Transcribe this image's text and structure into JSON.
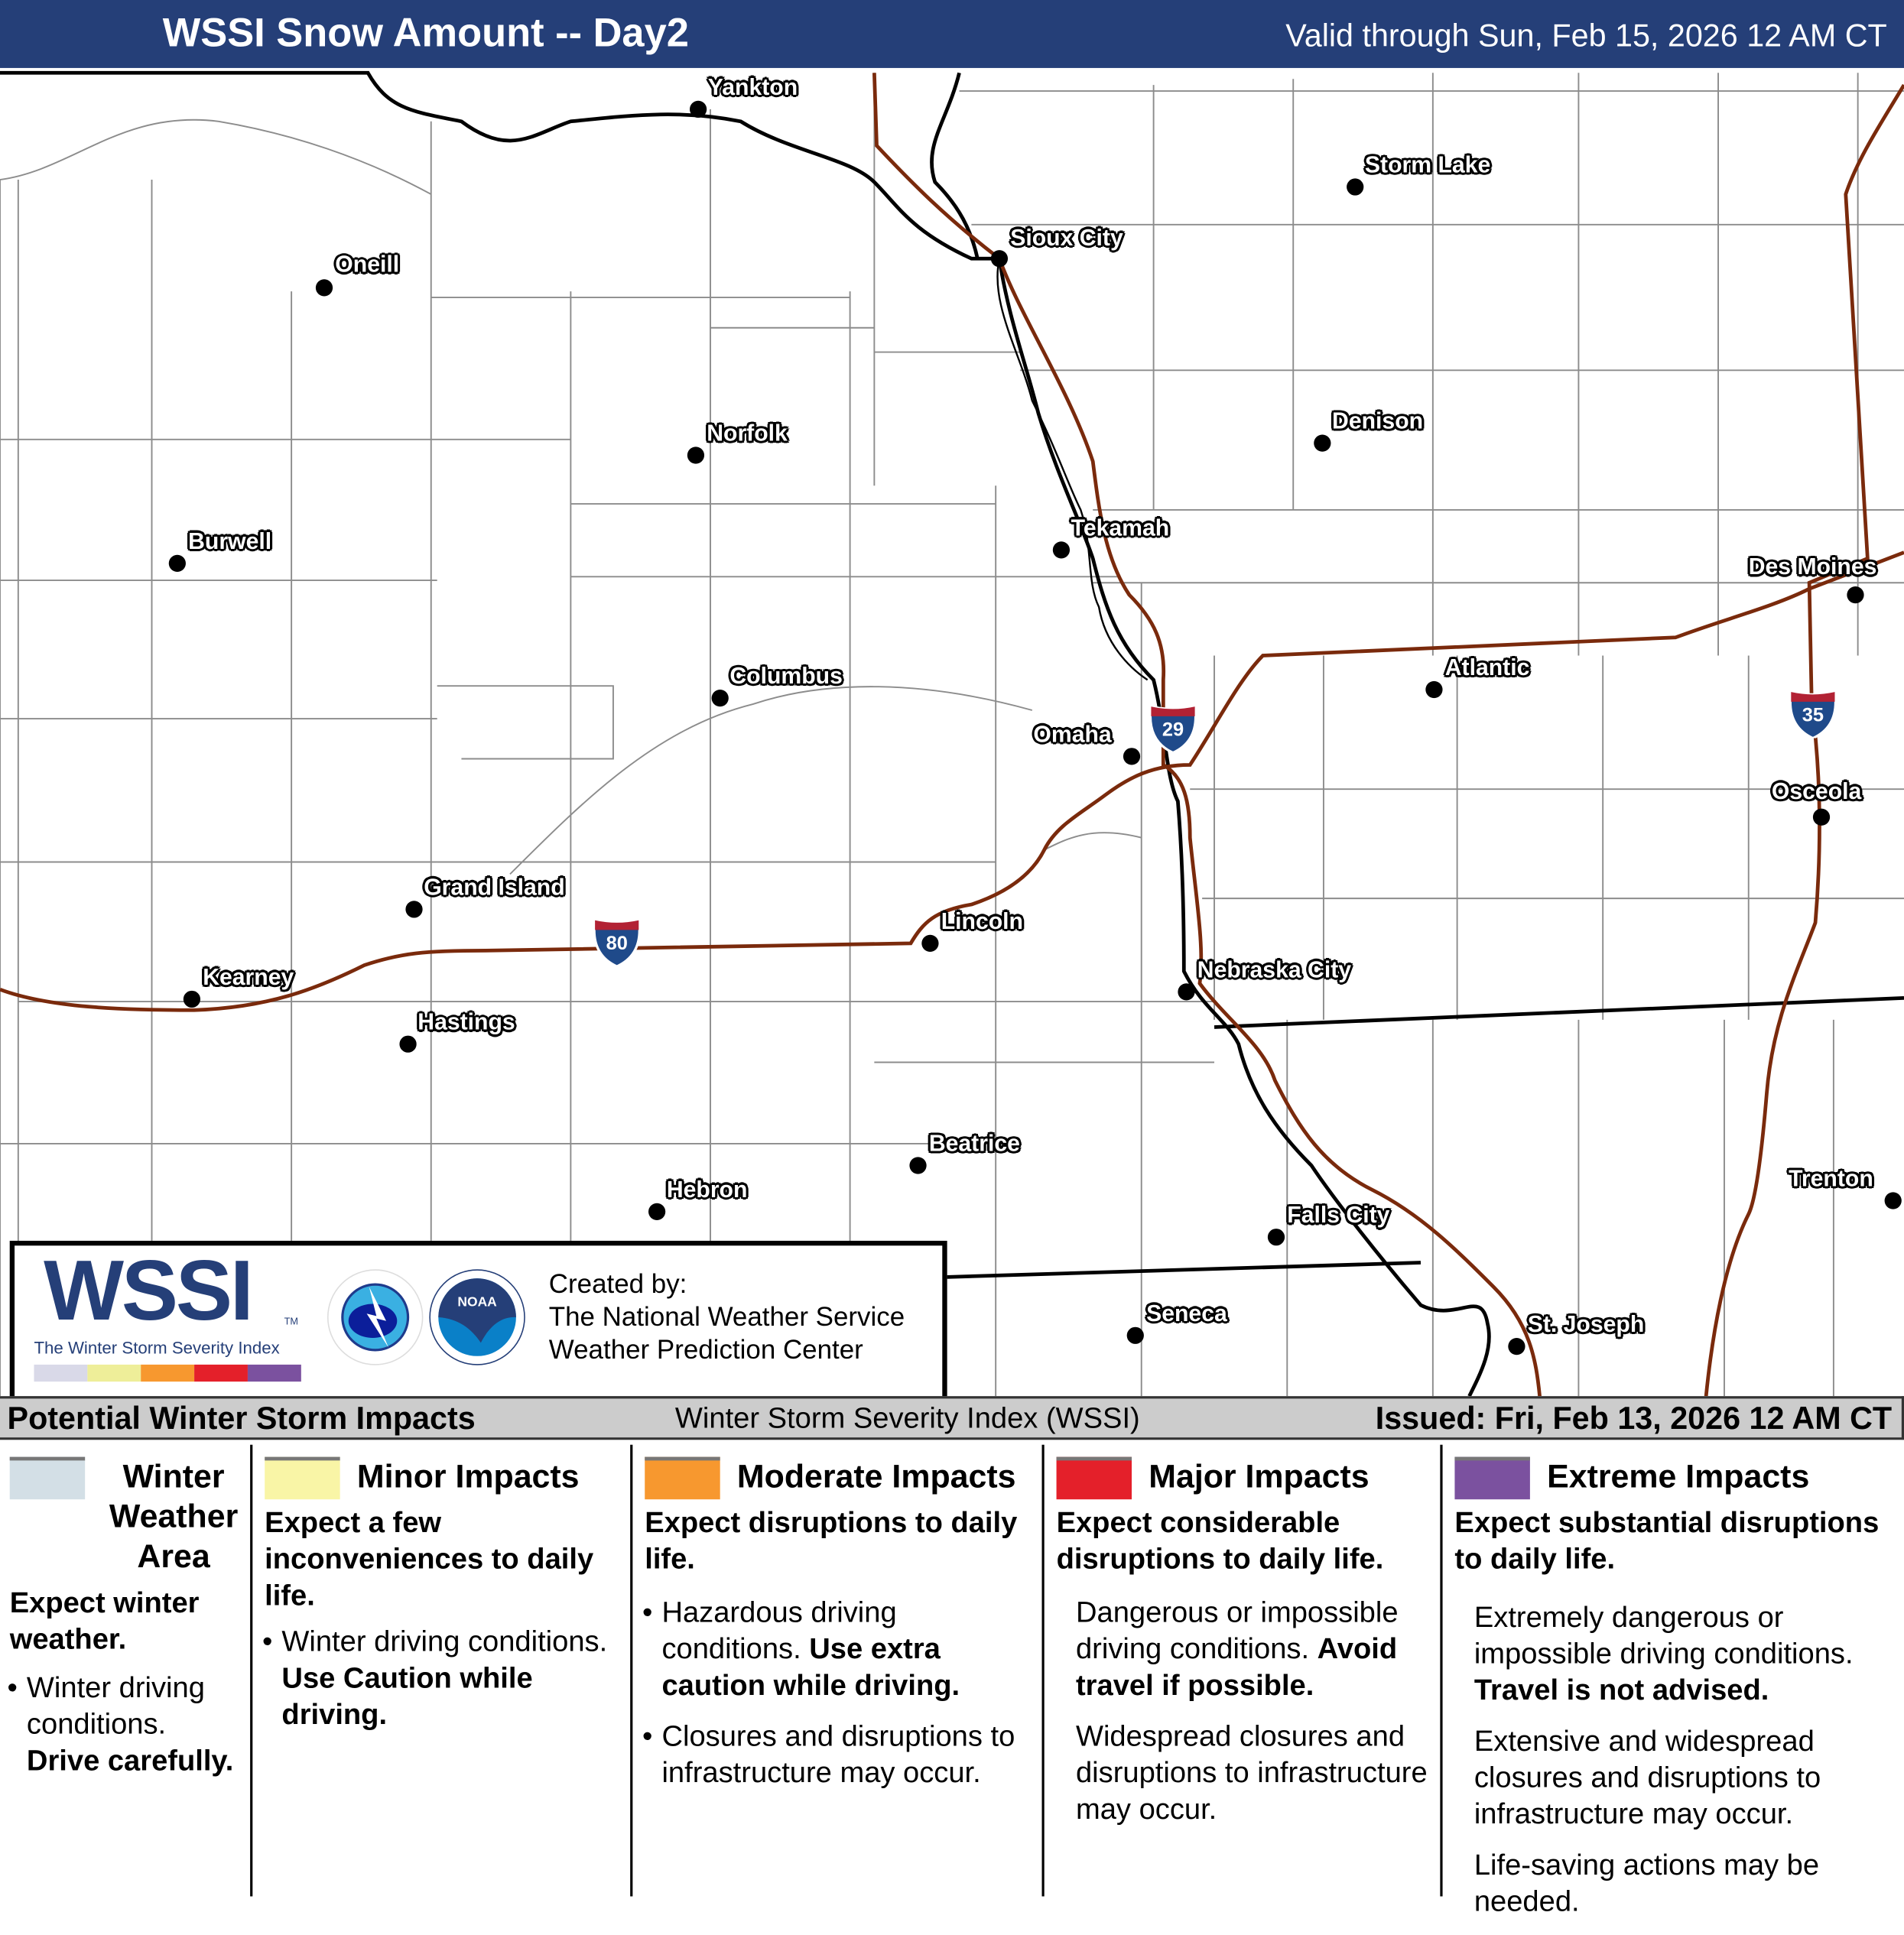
{
  "header": {
    "title": "WSSI Snow Amount -- Day2",
    "valid": "Valid through Sun, Feb 15, 2026 12 AM CT"
  },
  "map": {
    "cities": [
      {
        "name": "Yankton"
      },
      {
        "name": "Storm Lake"
      },
      {
        "name": "Sioux City"
      },
      {
        "name": "Oneill"
      },
      {
        "name": "Norfolk"
      },
      {
        "name": "Denison"
      },
      {
        "name": "Burwell"
      },
      {
        "name": "Tekamah"
      },
      {
        "name": "Des Moines"
      },
      {
        "name": "Columbus"
      },
      {
        "name": "Atlantic"
      },
      {
        "name": "Omaha"
      },
      {
        "name": "Osceola"
      },
      {
        "name": "Grand Island"
      },
      {
        "name": "Lincoln"
      },
      {
        "name": "Kearney"
      },
      {
        "name": "Nebraska City"
      },
      {
        "name": "Hastings"
      },
      {
        "name": "Beatrice"
      },
      {
        "name": "Hebron"
      },
      {
        "name": "Trenton"
      },
      {
        "name": "Falls City"
      },
      {
        "name": "Seneca"
      },
      {
        "name": "St. Joseph"
      }
    ],
    "interstates": [
      "29",
      "35",
      "80"
    ],
    "colors": {
      "interstate": "#7a2a0c",
      "state_line": "#000000",
      "county_line": "#8c8c8c",
      "shield_blue": "#1f4a8a",
      "shield_red": "#b22234"
    }
  },
  "logo": {
    "wssi": "WSSI",
    "tm": "TM",
    "subtitle": "The Winter Storm Severity Index",
    "created_by": "Created by:",
    "org1": "The National Weather Service",
    "org2": "Weather Prediction Center",
    "nws_ring": "NATIONAL WEATHER SERVICE",
    "noaa": "NOAA"
  },
  "band": {
    "left": "Potential Winter Storm Impacts",
    "center": "Winter Storm Severity Index (WSSI)",
    "issued": "Issued: Fri, Feb 13, 2026 12 AM CT"
  },
  "legend": [
    {
      "title": "Winter Weather Area",
      "color": "#d3dfe6",
      "desc": "Expect winter weather.",
      "bullets": [
        [
          "Winter driving conditions. ",
          "Drive carefully."
        ]
      ]
    },
    {
      "title": "Minor Impacts",
      "color": "#f9f5a6",
      "desc": "Expect a few inconveniences to daily life.",
      "bullets": [
        [
          "Winter driving conditions. ",
          "Use Caution while driving."
        ]
      ]
    },
    {
      "title": "Moderate Impacts",
      "color": "#f7982f",
      "desc": "Expect disruptions to daily life.",
      "bullets": [
        [
          "Hazardous driving conditions. ",
          "Use extra caution while driving."
        ],
        [
          "Closures and disruptions to infrastructure may occur.",
          ""
        ]
      ]
    },
    {
      "title": "Major Impacts",
      "color": "#e4202a",
      "desc": "Expect considerable disruptions to daily life.",
      "bullets": [
        [
          "Dangerous or impossible driving conditions. ",
          "Avoid travel if possible."
        ],
        [
          "Widespread closures and disruptions to infrastructure may occur.",
          ""
        ]
      ]
    },
    {
      "title": "Extreme Impacts",
      "color": "#7b519f",
      "desc": "Expect substantial disruptions to daily life.",
      "bullets": [
        [
          "Extremely dangerous or impossible driving conditions. ",
          "Travel is not advised."
        ],
        [
          "Extensive and widespread closures and disruptions to infrastructure may occur.",
          ""
        ],
        [
          "Life-saving actions may be needed.",
          ""
        ]
      ]
    }
  ],
  "wssi_bar_colors": [
    "#d9d9e8",
    "#eeee99",
    "#f7982f",
    "#e4202a",
    "#7b519f"
  ]
}
